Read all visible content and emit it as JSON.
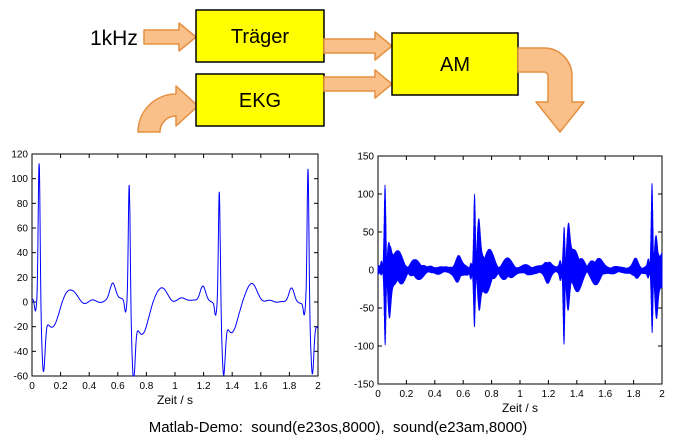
{
  "page": {
    "background": "#ffffff"
  },
  "diagram": {
    "input_label": "1kHz",
    "blocks": [
      {
        "id": "traeger",
        "label": "Träger"
      },
      {
        "id": "ekg",
        "label": "EKG"
      },
      {
        "id": "am",
        "label": "AM"
      }
    ],
    "colors": {
      "block_fill": "#ffff00",
      "block_border": "#000000",
      "arrow_fill": "#f9c08a",
      "arrow_border": "#e58f3f"
    }
  },
  "caption": "Matlab-Demo:  sound(e23os,8000),  sound(e23am,8000)",
  "chart_data": [
    {
      "name": "ekg-signal",
      "type": "line",
      "title": "",
      "xlabel": "Zeit / s",
      "ylabel": "",
      "xlim": [
        0,
        2
      ],
      "ylim": [
        -60,
        120
      ],
      "xticks": [
        0,
        0.2,
        0.4,
        0.6,
        0.8,
        1,
        1.2,
        1.4,
        1.6,
        1.8,
        2
      ],
      "yticks": [
        -60,
        -40,
        -20,
        0,
        20,
        40,
        60,
        80,
        100,
        120
      ],
      "grid": false,
      "legend": false,
      "line_color": "#0000ff",
      "signal": "ecg",
      "description": "ECG waveform, 4 heartbeats over 2 s",
      "beats": [
        {
          "t": 0.05,
          "r_peak": 118,
          "s_trough": -56
        },
        {
          "t": 0.68,
          "r_peak": 102,
          "s_trough": -62
        },
        {
          "t": 1.31,
          "r_peak": 97,
          "s_trough": -58
        },
        {
          "t": 1.93,
          "r_peak": 114,
          "s_trough": -60
        }
      ]
    },
    {
      "name": "am-signal",
      "type": "line",
      "title": "",
      "xlabel": "Zeit / s",
      "ylabel": "",
      "xlim": [
        0,
        2
      ],
      "ylim": [
        -150,
        150
      ],
      "xticks": [
        0,
        0.2,
        0.4,
        0.6,
        0.8,
        1,
        1.2,
        1.4,
        1.6,
        1.8,
        2
      ],
      "yticks": [
        -150,
        -100,
        -50,
        0,
        50,
        100,
        150
      ],
      "grid": false,
      "legend": false,
      "line_color": "#0000ff",
      "signal": "am",
      "carrier_hz": 1000,
      "description": "1 kHz carrier amplitude-modulated by the ECG signal; bursts at each heartbeat",
      "burst_peaks": [
        112,
        102,
        98,
        118
      ],
      "beats": [
        {
          "t": 0.05,
          "r_peak": 118,
          "s_trough": -56
        },
        {
          "t": 0.68,
          "r_peak": 102,
          "s_trough": -62
        },
        {
          "t": 1.31,
          "r_peak": 97,
          "s_trough": -58
        },
        {
          "t": 1.93,
          "r_peak": 114,
          "s_trough": -60
        }
      ]
    }
  ]
}
